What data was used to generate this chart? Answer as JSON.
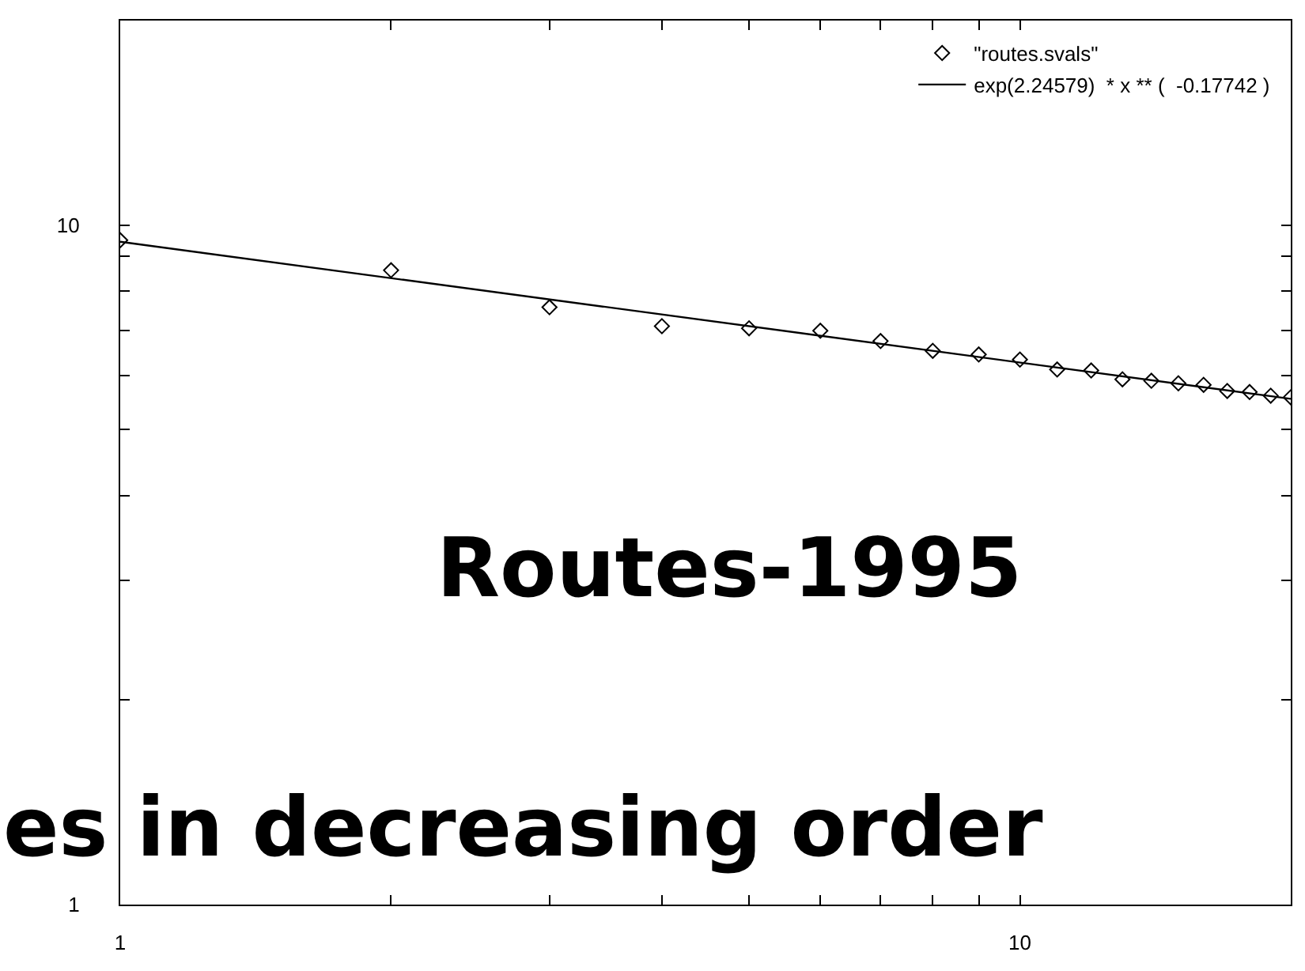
{
  "chart_data": {
    "type": "scatter",
    "log": "xy",
    "xlim": [
      1,
      20
    ],
    "ylim": [
      1,
      20
    ],
    "xticks": [
      1,
      {
        "value": 2,
        "label": null
      },
      {
        "value": 3,
        "label": null
      },
      {
        "value": 4,
        "label": null
      },
      {
        "value": 5,
        "label": null
      },
      {
        "value": 6,
        "label": null
      },
      {
        "value": 7,
        "label": null
      },
      {
        "value": 8,
        "label": null
      },
      {
        "value": 9,
        "label": null
      },
      10,
      {
        "value": 20,
        "label": null
      }
    ],
    "yticks": [
      1,
      {
        "value": 2,
        "label": null
      },
      {
        "value": 3,
        "label": null
      },
      {
        "value": 4,
        "label": null
      },
      {
        "value": 5,
        "label": null
      },
      {
        "value": 6,
        "label": null
      },
      {
        "value": 7,
        "label": null
      },
      {
        "value": 8,
        "label": null
      },
      {
        "value": 9,
        "label": null
      },
      10,
      {
        "value": 20,
        "label": null
      }
    ],
    "legend": "top right",
    "series": [
      {
        "name": "\"routes.svals\"",
        "marker": "diamond",
        "color": "#000000",
        "x": [
          1,
          2,
          3,
          4,
          5,
          6,
          7,
          8,
          9,
          10,
          11,
          12,
          13,
          14,
          15,
          16,
          17,
          18,
          19,
          20
        ],
        "values": [
          9.5,
          8.58,
          7.57,
          7.1,
          7.05,
          6.99,
          6.75,
          6.53,
          6.45,
          6.34,
          6.13,
          6.11,
          5.93,
          5.9,
          5.85,
          5.82,
          5.7,
          5.68,
          5.61,
          5.58
        ]
      },
      {
        "name": "exp(2.24579)  * x ** (  -0.17742 )",
        "type": "line",
        "line_style": "solid",
        "color": "#000000",
        "x": [
          1,
          20
        ],
        "values": [
          9.45,
          5.55
        ]
      }
    ],
    "annotations": [
      "Routes-1995",
      "es in decreasing order"
    ]
  }
}
